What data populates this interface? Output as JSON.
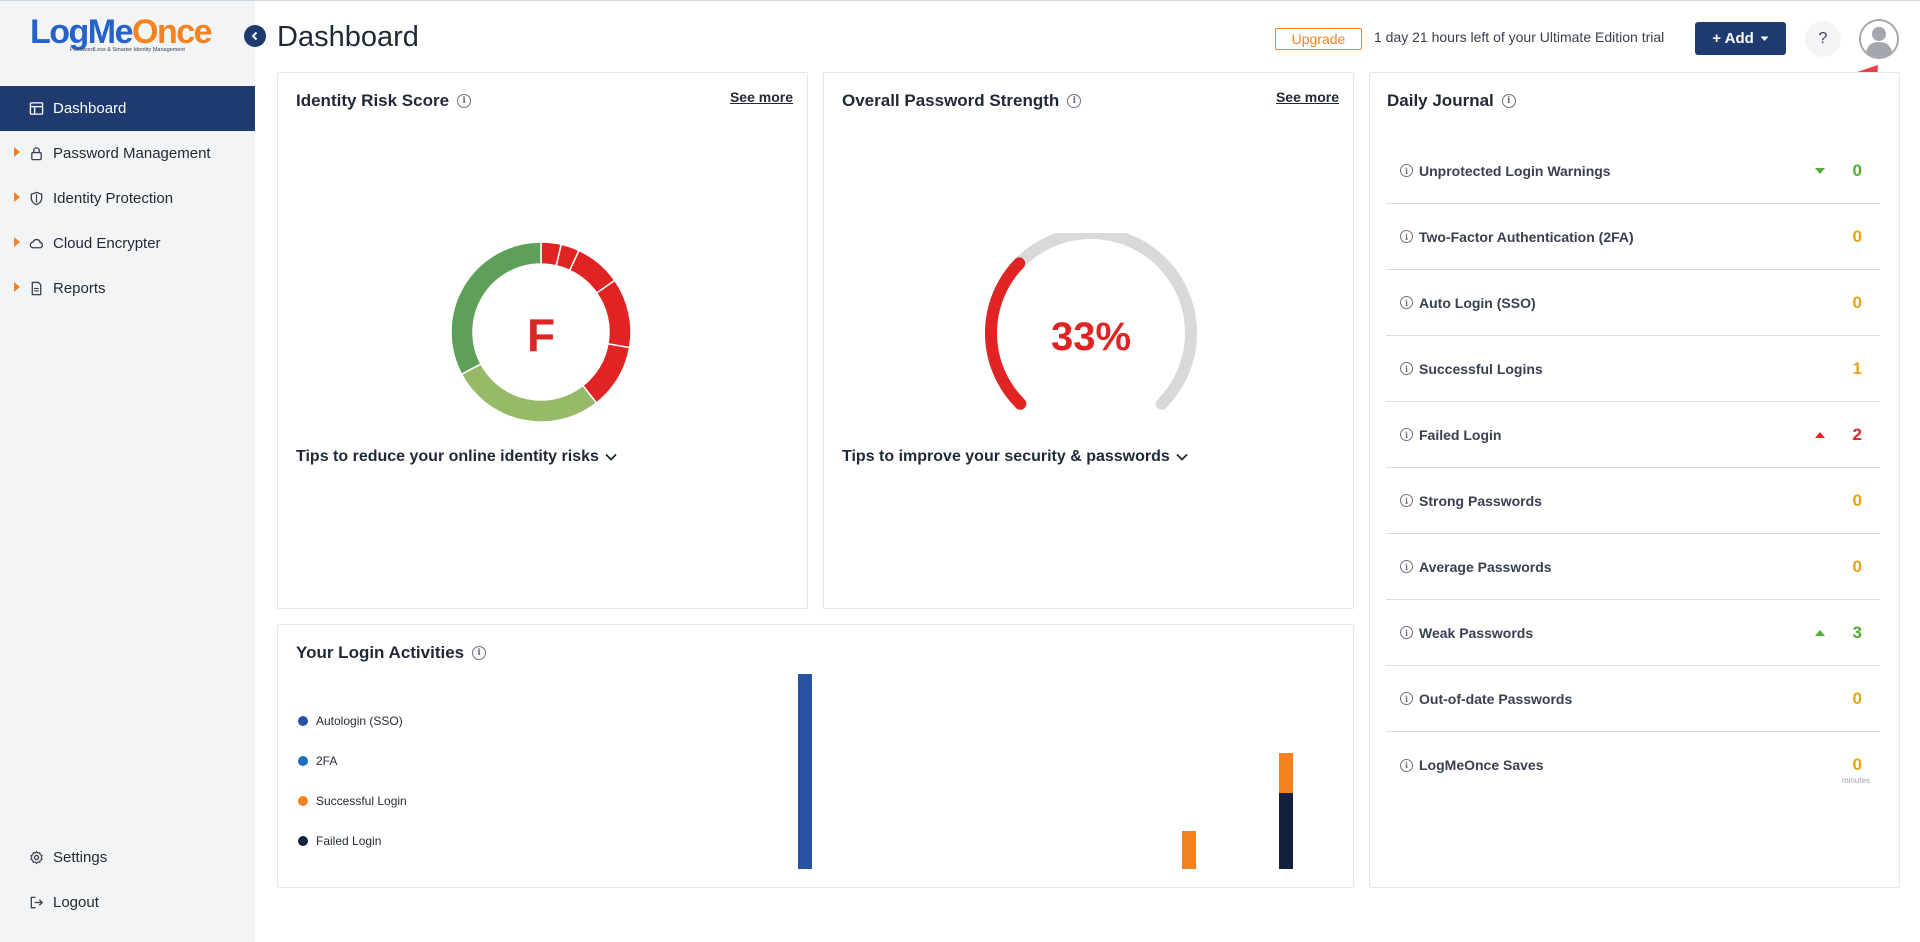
{
  "logo": {
    "main_a": "LogMe",
    "main_b": "Once",
    "tagline": "PasswordLess & Smarter Identity Management"
  },
  "sidebar": {
    "items": [
      {
        "label": "Dashboard",
        "icon": "dashboard-icon",
        "active": true
      },
      {
        "label": "Password Management",
        "icon": "lock-icon"
      },
      {
        "label": "Identity Protection",
        "icon": "shield-icon"
      },
      {
        "label": "Cloud Encrypter",
        "icon": "cloud-icon"
      },
      {
        "label": "Reports",
        "icon": "document-icon"
      }
    ],
    "bottom": [
      {
        "label": "Settings",
        "icon": "gear-icon"
      },
      {
        "label": "Logout",
        "icon": "logout-icon"
      }
    ]
  },
  "header": {
    "title": "Dashboard",
    "upgrade_label": "Upgrade",
    "trial_text": "1 day 21 hours left of your Ultimate Edition trial",
    "add_label": "+ Add",
    "help_label": "?"
  },
  "identity_risk": {
    "title": "Identity Risk Score",
    "see_more": "See more",
    "grade": "F",
    "tips": "Tips to reduce your online identity risks",
    "colors": {
      "green": "#5ea05a",
      "light_green": "#96ba68",
      "red": "#e02424"
    }
  },
  "password_strength": {
    "title": "Overall Password Strength",
    "see_more": "See more",
    "percent_label": "33%",
    "percent": 33,
    "tips": "Tips to improve your security & passwords"
  },
  "daily_journal": {
    "title": "Daily Journal",
    "rows": [
      {
        "label": "Unprotected Login Warnings",
        "value": "0",
        "color": "#4caf2e",
        "trend": "down"
      },
      {
        "label": "Two-Factor Authentication (2FA)",
        "value": "0",
        "color": "#e8a317",
        "trend": ""
      },
      {
        "label": "Auto Login (SSO)",
        "value": "0",
        "color": "#e8a317",
        "trend": ""
      },
      {
        "label": "Successful Logins",
        "value": "1",
        "color": "#e8a317",
        "trend": ""
      },
      {
        "label": "Failed Login",
        "value": "2",
        "color": "#e02424",
        "trend": "up-red"
      },
      {
        "label": "Strong Passwords",
        "value": "0",
        "color": "#e8a317",
        "trend": ""
      },
      {
        "label": "Average Passwords",
        "value": "0",
        "color": "#e8a317",
        "trend": ""
      },
      {
        "label": "Weak Passwords",
        "value": "3",
        "color": "#4caf2e",
        "trend": "up-green"
      },
      {
        "label": "Out-of-date Passwords",
        "value": "0",
        "color": "#e8a317",
        "trend": ""
      },
      {
        "label": "LogMeOnce Saves",
        "value": "0",
        "color": "#e8a317",
        "trend": "",
        "sub": "minutes"
      }
    ]
  },
  "login_activities": {
    "title": "Your Login Activities",
    "legend": [
      {
        "label": "Autologin (SSO)",
        "color": "#2952a3"
      },
      {
        "label": "2FA",
        "color": "#1f6fc1"
      },
      {
        "label": "Successful Login",
        "color": "#f58220"
      },
      {
        "label": "Failed Login",
        "color": "#13213f"
      }
    ]
  }
}
